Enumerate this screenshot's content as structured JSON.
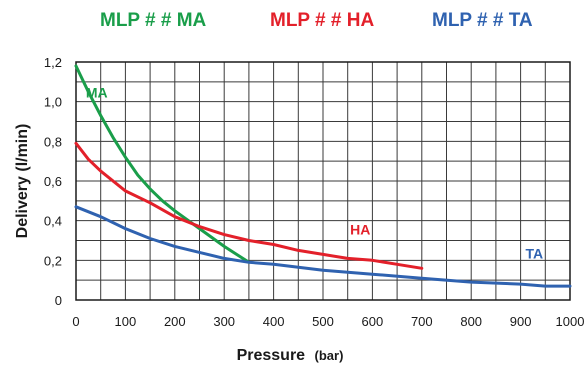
{
  "chart_data": {
    "type": "line",
    "xlabel": "Pressure",
    "xlabel_unit": "(bar)",
    "ylabel": "Delivery (l/min)",
    "xlim": [
      0,
      1000
    ],
    "ylim": [
      0,
      1.2
    ],
    "x_ticks": [
      "0",
      "100",
      "200",
      "300",
      "400",
      "500",
      "600",
      "700",
      "800",
      "900",
      "1000"
    ],
    "y_ticks": [
      "0",
      "0,2",
      "0,4",
      "0,6",
      "0,8",
      "1,0",
      "1,2"
    ],
    "grid": true,
    "x_minor_step": 50,
    "y_minor_step": 0.1,
    "legend": [
      {
        "text": "MLP # # MA",
        "color": "#1a9e4a"
      },
      {
        "text": "MLP # # HA",
        "color": "#e3202a"
      },
      {
        "text": "MLP # # TA",
        "color": "#2f62b0"
      }
    ],
    "series": [
      {
        "name": "MA",
        "color": "#1a9e4a",
        "label_pos": [
          20,
          1.02
        ],
        "points": [
          [
            0,
            1.18
          ],
          [
            25,
            1.05
          ],
          [
            50,
            0.93
          ],
          [
            75,
            0.82
          ],
          [
            100,
            0.72
          ],
          [
            125,
            0.63
          ],
          [
            150,
            0.56
          ],
          [
            175,
            0.5
          ],
          [
            200,
            0.45
          ],
          [
            250,
            0.36
          ],
          [
            300,
            0.27
          ],
          [
            350,
            0.19
          ]
        ]
      },
      {
        "name": "HA",
        "color": "#e3202a",
        "label_pos": [
          555,
          0.33
        ],
        "points": [
          [
            0,
            0.79
          ],
          [
            25,
            0.71
          ],
          [
            50,
            0.65
          ],
          [
            100,
            0.55
          ],
          [
            150,
            0.49
          ],
          [
            200,
            0.42
          ],
          [
            250,
            0.37
          ],
          [
            300,
            0.33
          ],
          [
            350,
            0.3
          ],
          [
            400,
            0.28
          ],
          [
            450,
            0.25
          ],
          [
            500,
            0.23
          ],
          [
            550,
            0.21
          ],
          [
            600,
            0.2
          ],
          [
            650,
            0.18
          ],
          [
            700,
            0.16
          ]
        ]
      },
      {
        "name": "TA",
        "color": "#2f62b0",
        "label_pos": [
          910,
          0.21
        ],
        "points": [
          [
            0,
            0.47
          ],
          [
            50,
            0.42
          ],
          [
            100,
            0.36
          ],
          [
            150,
            0.31
          ],
          [
            200,
            0.27
          ],
          [
            250,
            0.24
          ],
          [
            300,
            0.21
          ],
          [
            350,
            0.19
          ],
          [
            400,
            0.18
          ],
          [
            500,
            0.15
          ],
          [
            600,
            0.13
          ],
          [
            700,
            0.11
          ],
          [
            800,
            0.09
          ],
          [
            900,
            0.08
          ],
          [
            950,
            0.07
          ],
          [
            1000,
            0.07
          ]
        ]
      }
    ]
  }
}
